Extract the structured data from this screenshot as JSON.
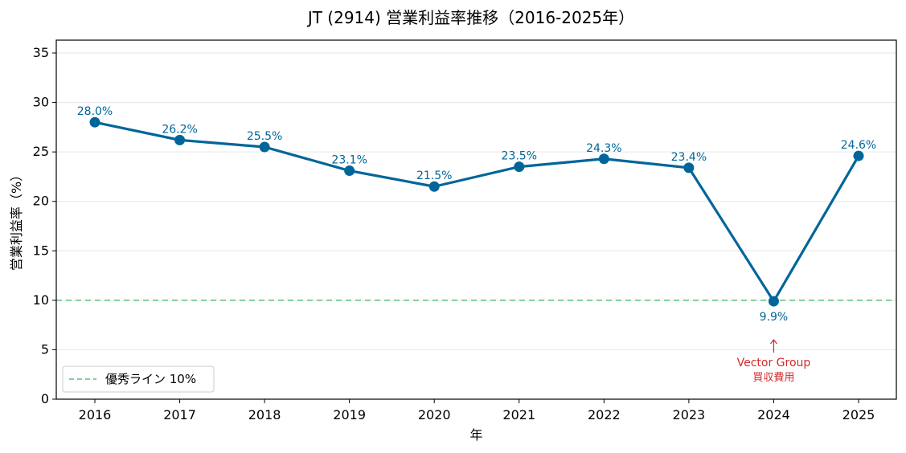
{
  "chart_data": {
    "type": "line",
    "title": "JT (2914) 営業利益率推移（2016-2025年）",
    "xlabel": "年",
    "ylabel": "営業利益率（%）",
    "categories": [
      "2016",
      "2017",
      "2018",
      "2019",
      "2020",
      "2021",
      "2022",
      "2023",
      "2024",
      "2025"
    ],
    "series": [
      {
        "values": [
          28.0,
          26.2,
          25.5,
          23.1,
          21.5,
          23.5,
          24.3,
          23.4,
          9.9,
          24.6
        ],
        "point_labels": [
          "28.0%",
          "26.2%",
          "25.5%",
          "23.1%",
          "21.5%",
          "23.5%",
          "24.3%",
          "23.4%",
          "9.9%",
          "24.6%"
        ],
        "color": "#006699"
      }
    ],
    "ylim": [
      0,
      36.3
    ],
    "yticks": [
      "0",
      "5",
      "10",
      "15",
      "20",
      "25",
      "30",
      "35"
    ],
    "grid": "horizontal",
    "reference_line": {
      "value": 10,
      "label": "優秀ライン 10%",
      "color": "#7fcf9a",
      "style": "dashed"
    },
    "annotation": {
      "category": "2024",
      "line1": "Vector Group",
      "line2": "買収費用",
      "color": "#d62728"
    },
    "legend_position": "lower-left"
  }
}
